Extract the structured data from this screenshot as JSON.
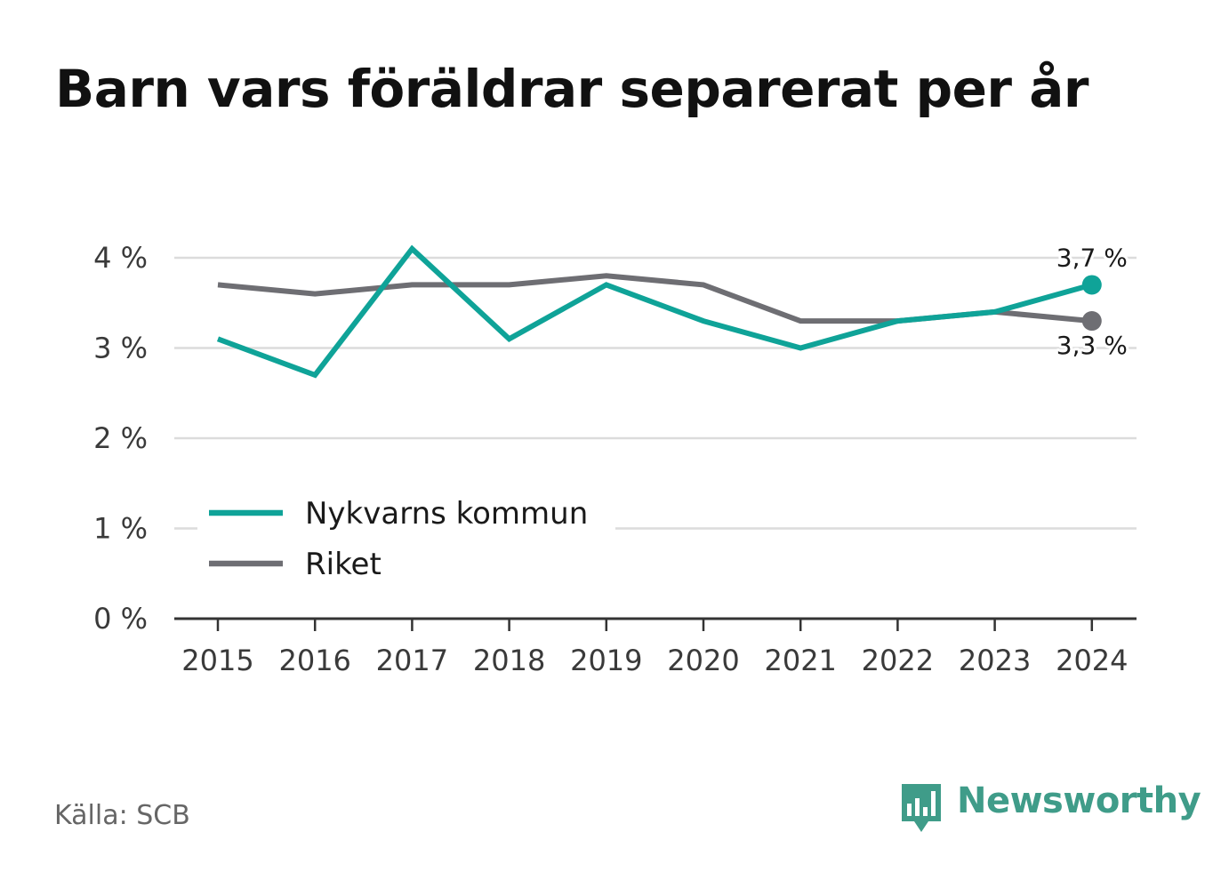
{
  "title": "Barn vars föräldrar separerat per år",
  "source": "Källa: SCB",
  "brand": {
    "name": "Newsworthy",
    "color": "#3f9c89"
  },
  "chart_data": {
    "type": "line",
    "title": "Barn vars föräldrar separerat per år",
    "xlabel": "",
    "ylabel": "",
    "x": [
      "2015",
      "2016",
      "2017",
      "2018",
      "2019",
      "2020",
      "2021",
      "2022",
      "2023",
      "2024"
    ],
    "ylim": [
      0,
      4.3
    ],
    "yticks": [
      0,
      1,
      2,
      3,
      4
    ],
    "ytick_labels": [
      "0 %",
      "1 %",
      "2 %",
      "3 %",
      "4 %"
    ],
    "grid": true,
    "legend_position": "bottom-left",
    "series": [
      {
        "name": "Nykvarns kommun",
        "color": "#0fa398",
        "values": [
          3.1,
          2.7,
          4.1,
          3.1,
          3.7,
          3.3,
          3.0,
          3.3,
          3.4,
          3.7
        ],
        "end_label": "3,7 %"
      },
      {
        "name": "Riket",
        "color": "#6e6e73",
        "values": [
          3.7,
          3.6,
          3.7,
          3.7,
          3.8,
          3.7,
          3.3,
          3.3,
          3.4,
          3.3
        ],
        "end_label": "3,3 %"
      }
    ]
  }
}
